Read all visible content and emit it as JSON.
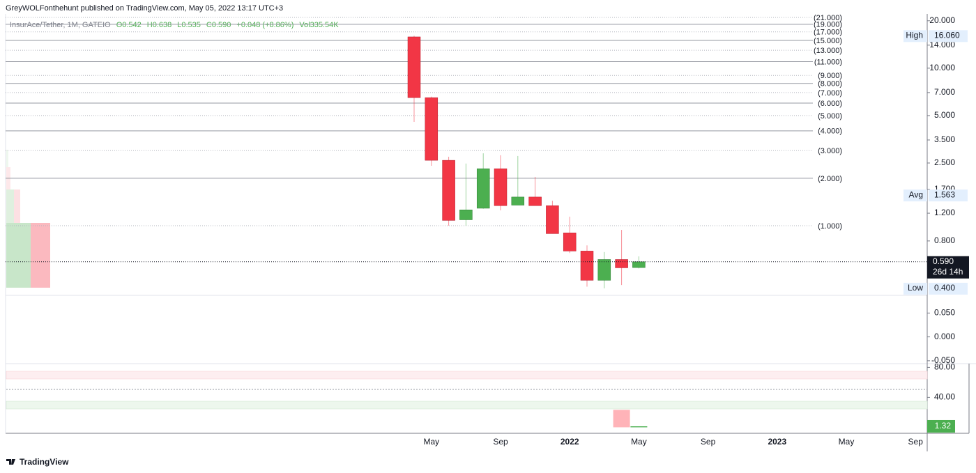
{
  "header": {
    "publisher": "GreyWOLFonthehunt published on TradingView.com, May 05, 2022 13:17 UTC+3",
    "symbol": "InsurAce/Tether, 1M, GATEIO",
    "ohlc": [
      "O0.542",
      "H0.638",
      "L0.535",
      "C0.590",
      "+0.048 (+8.86%)",
      "Vol335.54K"
    ]
  },
  "chart_data": [
    {
      "type": "candlestick",
      "categories": [
        null,
        "May",
        null,
        null,
        null,
        "Sep",
        null,
        null,
        null,
        "2022",
        null,
        null,
        null,
        "May",
        null,
        null,
        null,
        "Sep",
        null,
        null,
        null,
        "2023",
        null,
        null,
        null,
        "May",
        null,
        null,
        null,
        "Sep"
      ],
      "open": [
        15.8,
        6.5,
        2.6,
        1.09,
        1.29,
        2.3,
        1.35,
        1.52,
        1.34,
        0.9,
        0.69,
        0.45,
        0.61,
        0.542,
        null,
        null,
        null,
        null,
        null,
        null,
        null,
        null,
        null,
        null,
        null,
        null,
        null,
        null,
        null,
        null
      ],
      "high": [
        16.06,
        6.6,
        2.74,
        2.48,
        2.88,
        2.8,
        2.77,
        2.04,
        1.44,
        1.14,
        0.75,
        0.68,
        0.94,
        0.638,
        null,
        null,
        null,
        null,
        null,
        null,
        null,
        null,
        null,
        null,
        null,
        null,
        null,
        null,
        null,
        null
      ],
      "low": [
        4.56,
        2.4,
        1.0,
        1.0,
        1.28,
        1.25,
        1.35,
        1.34,
        0.89,
        0.67,
        0.41,
        0.4,
        0.42,
        0.535,
        null,
        null,
        null,
        null,
        null,
        null,
        null,
        null,
        null,
        null,
        null,
        null,
        null,
        null,
        null,
        null
      ],
      "close": [
        6.5,
        2.6,
        1.08,
        1.26,
        2.3,
        1.34,
        1.52,
        1.34,
        0.89,
        0.69,
        0.45,
        0.61,
        0.54,
        0.59,
        null,
        null,
        null,
        null,
        null,
        null,
        null,
        null,
        null,
        null,
        null,
        null,
        null,
        null,
        null,
        null
      ],
      "up_color": "#4caf50",
      "down_color": "#f23645",
      "log_scale": true,
      "ylim": [
        0.361,
        22.1
      ],
      "yticks": [
        {
          "value": 20,
          "label": "20.000"
        },
        {
          "value": 14,
          "label": "14.000"
        },
        {
          "value": 10,
          "label": "10.000"
        },
        {
          "value": 7,
          "label": "7.000"
        },
        {
          "value": 5,
          "label": "5.000"
        },
        {
          "value": 3.5,
          "label": "3.500"
        },
        {
          "value": 2.5,
          "label": "2.500"
        },
        {
          "value": 1.7,
          "label": "1.700"
        },
        {
          "value": 1.2,
          "label": "1.200"
        },
        {
          "value": 0.8,
          "label": "0.800"
        }
      ],
      "levels": [
        {
          "value": 21,
          "label": "(21.000)",
          "style": "dotted"
        },
        {
          "value": 19,
          "label": "(19.000)",
          "style": "solid"
        },
        {
          "value": 17,
          "label": "(17.000)",
          "style": "dotted"
        },
        {
          "value": 15,
          "label": "(15.000)",
          "style": "solid"
        },
        {
          "value": 13,
          "label": "(13.000)",
          "style": "dotted"
        },
        {
          "value": 11,
          "label": "(11.000)",
          "style": "solid"
        },
        {
          "value": 9,
          "label": "(9.000)",
          "style": "dotted"
        },
        {
          "value": 8,
          "label": "(8.000)",
          "style": "solid"
        },
        {
          "value": 7,
          "label": "(7.000)",
          "style": "dotted"
        },
        {
          "value": 6,
          "label": "(6.000)",
          "style": "solid"
        },
        {
          "value": 5,
          "label": "(5.000)",
          "style": "dotted"
        },
        {
          "value": 4,
          "label": "(4.000)",
          "style": "solid"
        },
        {
          "value": 3,
          "label": "(3.000)",
          "style": "dotted"
        },
        {
          "value": 2,
          "label": "(2.000)",
          "style": "solid"
        },
        {
          "value": 1,
          "label": "(1.000)",
          "style": "dotted"
        }
      ],
      "markers": [
        {
          "name": "High",
          "value": 16.06,
          "label": "16.060"
        },
        {
          "name": "Avg",
          "value": 1.563,
          "label": "1.563"
        },
        {
          "name": "Low",
          "value": 0.4,
          "label": "0.400"
        }
      ],
      "last_price": {
        "value": 0.59,
        "label": "0.590",
        "countdown": "26d 14h"
      }
    },
    {
      "type": "blank",
      "ylim": [
        -0.056,
        0.087
      ],
      "yticks": [
        {
          "value": 0.05,
          "label": "0.050"
        },
        {
          "value": 0,
          "label": "0.000"
        },
        {
          "value": -0.05,
          "label": "-0.050"
        }
      ]
    },
    {
      "type": "bar",
      "ylim": [
        -8,
        85
      ],
      "yticks": [
        {
          "value": 80,
          "label": "80.00"
        },
        {
          "value": 40,
          "label": "40.00"
        }
      ],
      "values": [
        null,
        null,
        null,
        null,
        null,
        null,
        null,
        null,
        null,
        null,
        null,
        null,
        23.3,
        1.32,
        null,
        null,
        null,
        null,
        null,
        null,
        null,
        null,
        null,
        null,
        null,
        null,
        null,
        null,
        null,
        null
      ],
      "colors": [
        null,
        null,
        null,
        null,
        null,
        null,
        null,
        null,
        null,
        null,
        null,
        null,
        "#ffb3b8",
        "#4caf50",
        null,
        null,
        null,
        null,
        null,
        null,
        null,
        null,
        null,
        null,
        null,
        null,
        null,
        null,
        null,
        null
      ],
      "last": {
        "value": 1.32,
        "label": "1.32",
        "color": "#4caf50"
      }
    }
  ],
  "footer": {
    "brand": "TradingView"
  }
}
